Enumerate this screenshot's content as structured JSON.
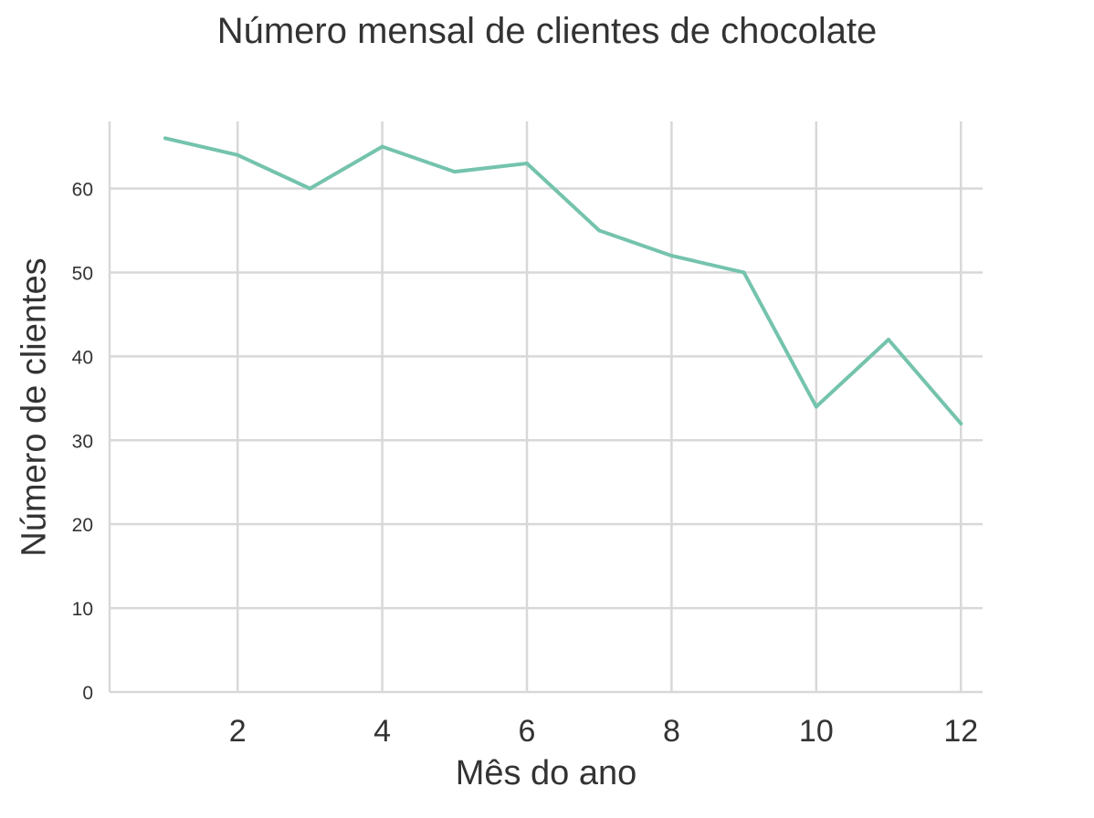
{
  "chart_data": {
    "type": "line",
    "title": "Número mensal de clientes de chocolate",
    "xlabel": "Mês do ano",
    "ylabel": "Número de clientes",
    "x": [
      1,
      2,
      3,
      4,
      5,
      6,
      7,
      8,
      9,
      10,
      11,
      12
    ],
    "series": [
      {
        "values": [
          66,
          64,
          60,
          65,
          62,
          63,
          55,
          52,
          50,
          34,
          42,
          32
        ]
      }
    ],
    "xticks": [
      2,
      4,
      6,
      8,
      10,
      12
    ],
    "yticks": [
      0,
      10,
      20,
      30,
      40,
      50,
      60
    ],
    "xlim": [
      0.23,
      12.3
    ],
    "ylim": [
      0,
      68
    ],
    "grid": true,
    "line_color": "#74c3ad"
  }
}
